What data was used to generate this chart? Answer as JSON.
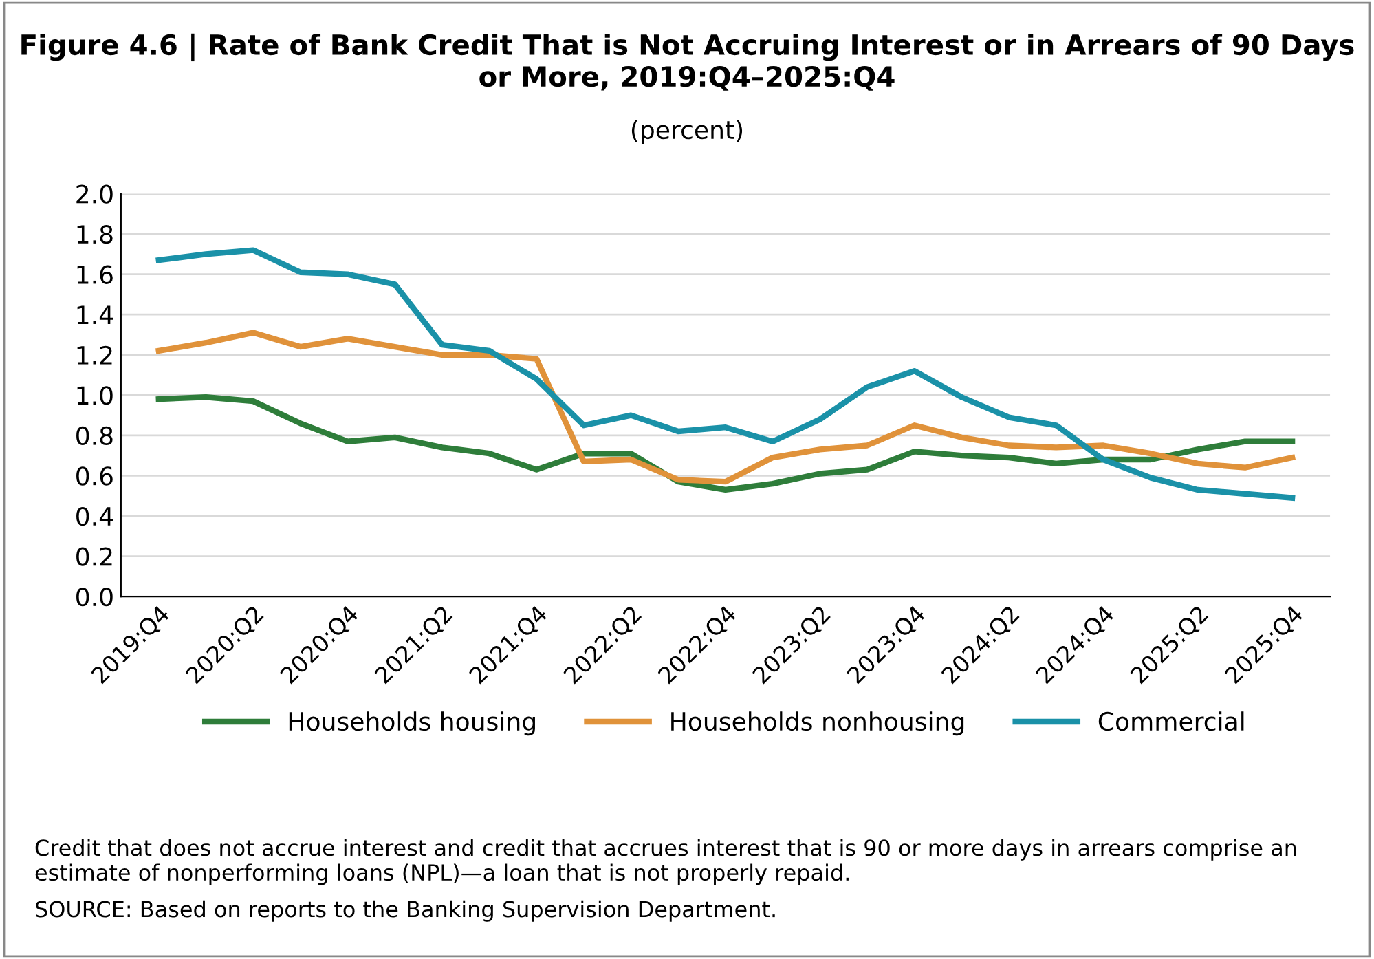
{
  "chart_data": {
    "type": "line",
    "title": "Figure 4.6 | Rate of Bank Credit That is Not Accruing Interest or in Arrears of 90 Days or More, 2019:Q4–2025:Q4",
    "subtitle": "(percent)",
    "categories": [
      "2019:Q4",
      null,
      "2020:Q2",
      null,
      "2020:Q4",
      null,
      "2021:Q2",
      null,
      "2021:Q4",
      null,
      "2022:Q2",
      null,
      "2022:Q4",
      null,
      "2023:Q2",
      null,
      "2023:Q4",
      null,
      "2024:Q2",
      null,
      "2024:Q4",
      null,
      "2025:Q2",
      null,
      "2025:Q4"
    ],
    "series": [
      {
        "name": "Households housing",
        "color": "#2e7d3a",
        "values": [
          0.98,
          0.99,
          0.97,
          0.86,
          0.77,
          0.79,
          0.74,
          0.71,
          0.63,
          0.71,
          0.71,
          0.57,
          0.53,
          0.56,
          0.61,
          0.63,
          0.72,
          0.7,
          0.69,
          0.66,
          0.68,
          0.68,
          0.73,
          0.77,
          0.77
        ]
      },
      {
        "name": "Households nonhousing",
        "color": "#e0923a",
        "values": [
          1.22,
          1.26,
          1.31,
          1.24,
          1.28,
          1.24,
          1.2,
          1.2,
          1.18,
          0.67,
          0.68,
          0.58,
          0.57,
          0.69,
          0.73,
          0.75,
          0.85,
          0.79,
          0.75,
          0.74,
          0.75,
          0.71,
          0.66,
          0.64,
          0.69
        ]
      },
      {
        "name": "Commercial",
        "color": "#1a91a8",
        "values": [
          1.67,
          1.7,
          1.72,
          1.61,
          1.6,
          1.55,
          1.25,
          1.22,
          1.08,
          0.85,
          0.9,
          0.82,
          0.84,
          0.77,
          0.88,
          1.04,
          1.12,
          0.99,
          0.89,
          0.85,
          0.68,
          0.59,
          0.53,
          0.51,
          0.49
        ]
      }
    ],
    "ylim": [
      0,
      2
    ],
    "yticks": [
      {
        "value": 0,
        "label": "0.0"
      },
      0.2,
      0.4,
      0.6,
      0.8,
      {
        "value": 1,
        "label": "1.0"
      },
      1.2,
      1.4,
      1.6,
      1.8,
      {
        "value": 2,
        "label": "2.0"
      }
    ],
    "grid": "y",
    "legend": "bottom",
    "marker": "none",
    "line_style": "solid",
    "annotations": [
      "Credit that does not accrue interest and credit that accrues interest that is 90 or more days in arrears comprise an estimate of nonperforming loans (NPL)—a loan that is not properly repaid.",
      "SOURCE: Based on reports to the Banking Supervision Department."
    ]
  }
}
